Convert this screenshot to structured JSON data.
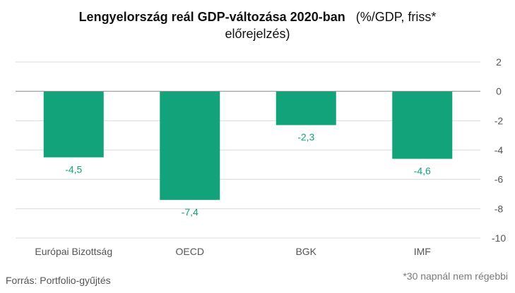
{
  "title": {
    "main": "Lengyelország reál GDP-változása 2020-ban",
    "line1_rest": "(%/GDP, friss*",
    "line2": "előrejelzés)"
  },
  "source": "Forrás: Portfolio-gyűjtés",
  "footnote": "*30 napnál nem régebbi",
  "colors": {
    "bar": "#12a37a",
    "label": "#12a37a",
    "grid": "#d9d9d9",
    "zero": "#8c8c8c",
    "text": "#555555"
  },
  "chart_data": {
    "type": "bar",
    "categories": [
      "Európai Bizottság",
      "OECD",
      "BGK",
      "IMF"
    ],
    "values": [
      -4.5,
      -7.4,
      -2.3,
      -4.6
    ],
    "value_labels": [
      "-4,5",
      "-7,4",
      "-2,3",
      "-4,6"
    ],
    "ylim": [
      -10,
      2
    ],
    "yticks": [
      2,
      0,
      -2,
      -4,
      -6,
      -8,
      -10
    ],
    "ytick_labels": [
      "2",
      "0",
      "-2",
      "-4",
      "-6",
      "-8",
      "-10"
    ],
    "y_axis_position": "right",
    "grid": true,
    "legend": "none"
  }
}
